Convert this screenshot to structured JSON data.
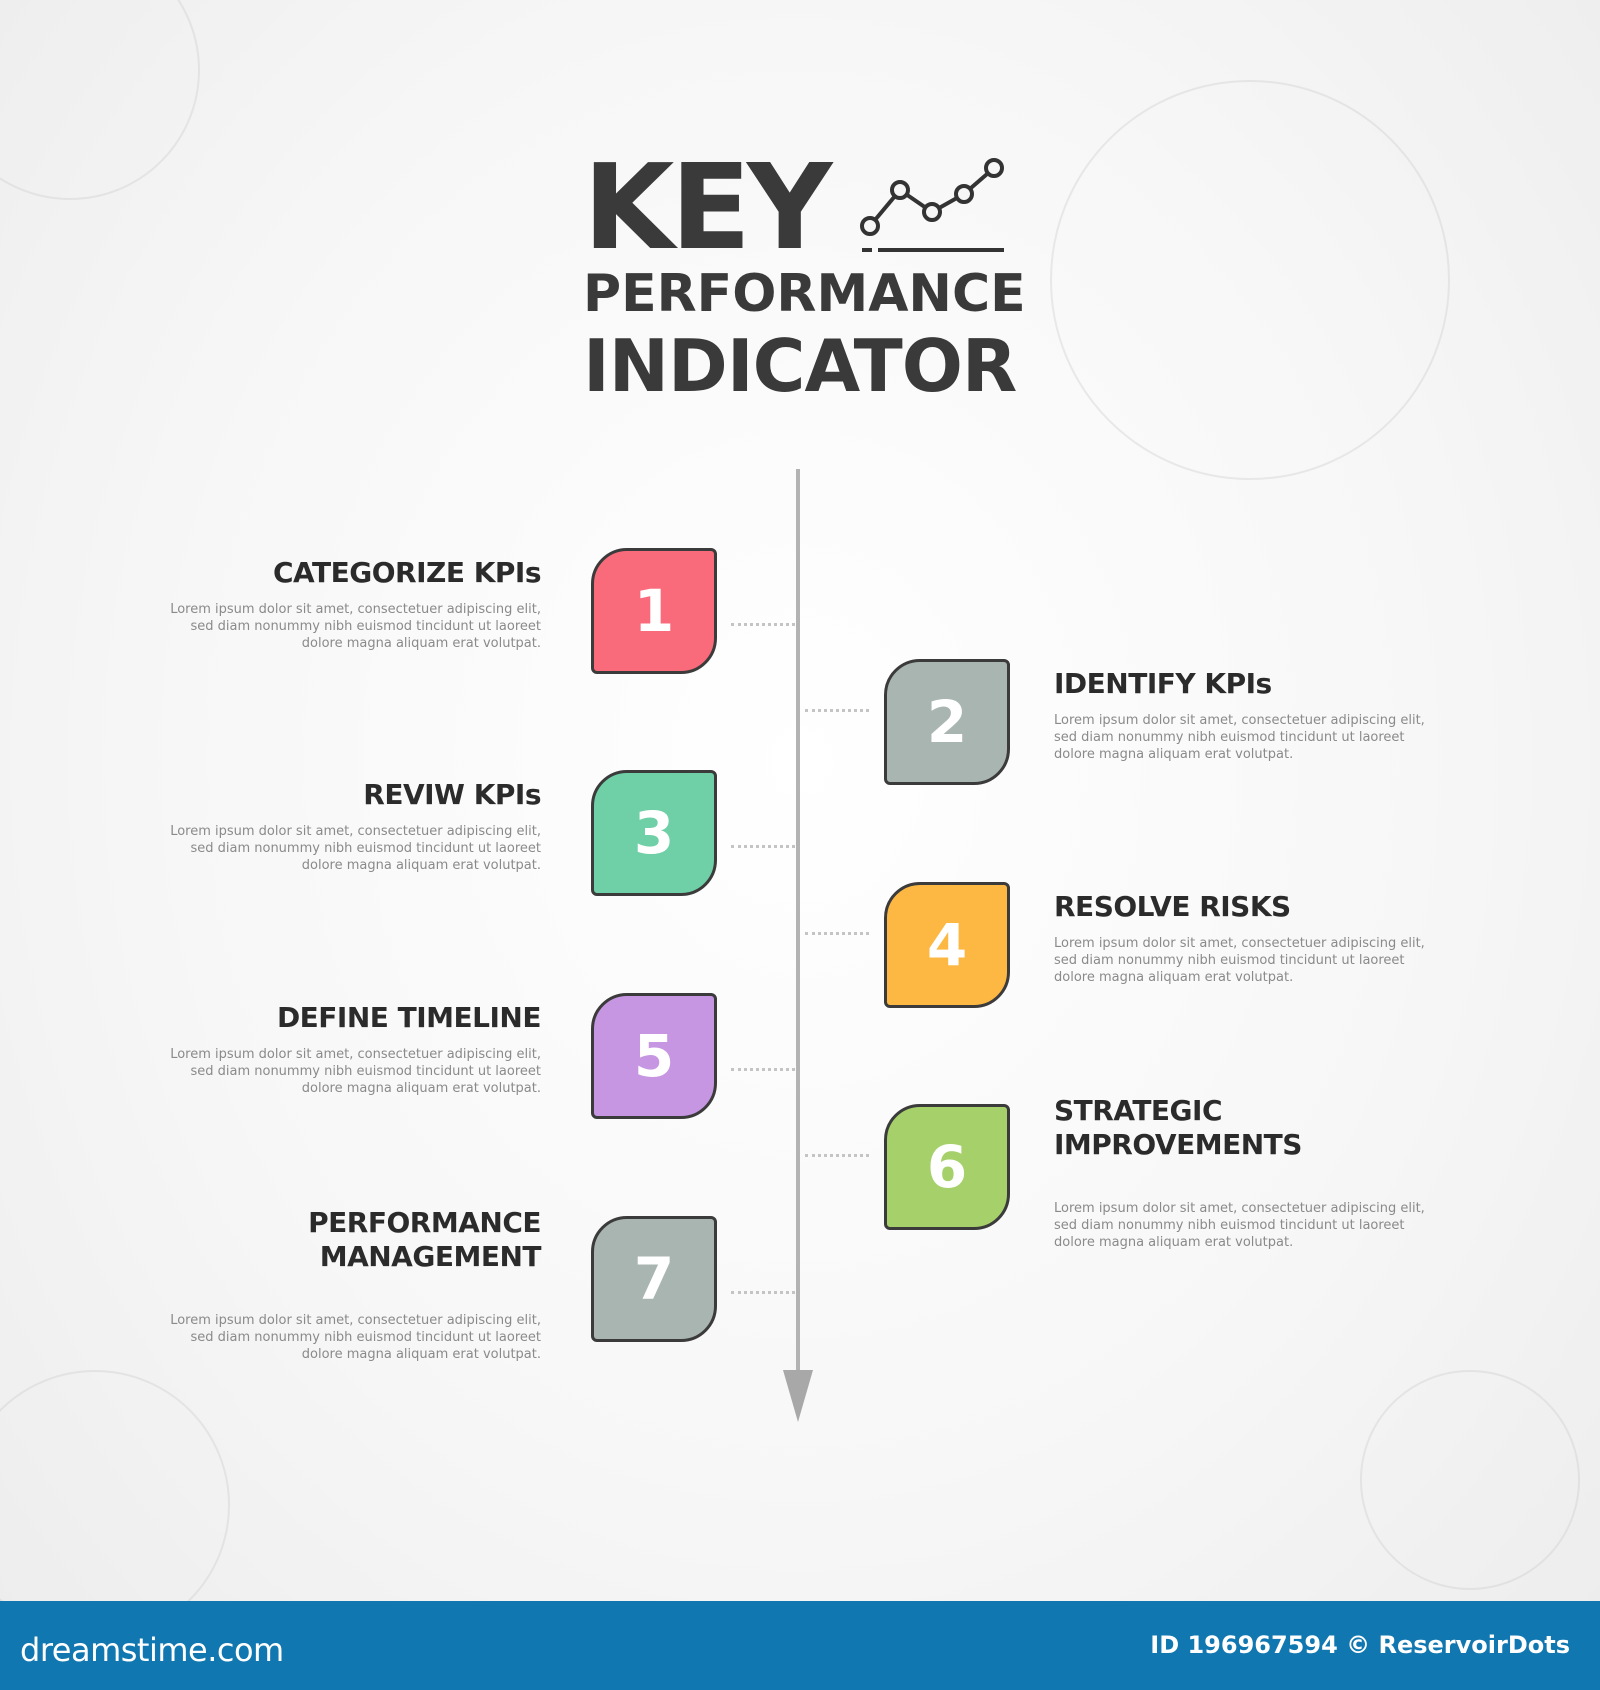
{
  "title": {
    "line1": "KEY",
    "line2": "PERFORMANCE",
    "line3": "INDICATOR",
    "icon": "line-chart-icon"
  },
  "steps": [
    {
      "number": "1",
      "title": "CATEGORIZE KPIs",
      "side": "left",
      "color": "#f96b7a",
      "lines": [
        "Lorem ipsum dolor sit amet, consectetuer adipiscing elit,",
        "sed diam nonummy nibh euismod tincidunt ut laoreet",
        "dolore magna aliquam erat volutpat."
      ]
    },
    {
      "number": "2",
      "title": "IDENTIFY KPIs",
      "side": "right",
      "color": "#a9b5b0",
      "lines": [
        "Lorem ipsum dolor sit amet, consectetuer adipiscing elit,",
        "sed diam nonummy nibh euismod tincidunt ut laoreet",
        "dolore magna aliquam erat volutpat."
      ]
    },
    {
      "number": "3",
      "title": "REVIW KPIs",
      "side": "left",
      "color": "#6fcfa7",
      "lines": [
        "Lorem ipsum dolor sit amet, consectetuer adipiscing elit,",
        "sed diam nonummy nibh euismod tincidunt ut laoreet",
        "dolore magna aliquam erat volutpat."
      ]
    },
    {
      "number": "4",
      "title": "RESOLVE RISKS",
      "side": "right",
      "color": "#fdb843",
      "lines": [
        "Lorem ipsum dolor sit amet, consectetuer adipiscing elit,",
        "sed diam nonummy nibh euismod tincidunt ut laoreet",
        "dolore magna aliquam erat volutpat."
      ]
    },
    {
      "number": "5",
      "title": "DEFINE TIMELINE",
      "side": "left",
      "color": "#c696e2",
      "lines": [
        "Lorem ipsum dolor sit amet, consectetuer adipiscing elit,",
        "sed diam nonummy nibh euismod tincidunt ut laoreet",
        "dolore magna aliquam erat volutpat."
      ]
    },
    {
      "number": "6",
      "title": "STRATEGIC IMPROVEMENTS",
      "side": "right",
      "color": "#a6d06a",
      "lines": [
        "Lorem ipsum dolor sit amet, consectetuer adipiscing elit,",
        "sed diam nonummy nibh euismod tincidunt ut laoreet",
        "dolore magna aliquam erat volutpat."
      ]
    },
    {
      "number": "7",
      "title": "PERFORMANCE MANAGEMENT",
      "side": "left",
      "color": "#a9b5b0",
      "lines": [
        "Lorem ipsum dolor sit amet, consectetuer adipiscing elit,",
        "sed diam nonummy nibh euismod tincidunt ut laoreet",
        "dolore magna aliquam erat volutpat."
      ]
    }
  ],
  "footer": {
    "logo": "dreamstime.com",
    "credit": "ID 196967594 © ReservoirDots",
    "color": "#1077b0"
  }
}
